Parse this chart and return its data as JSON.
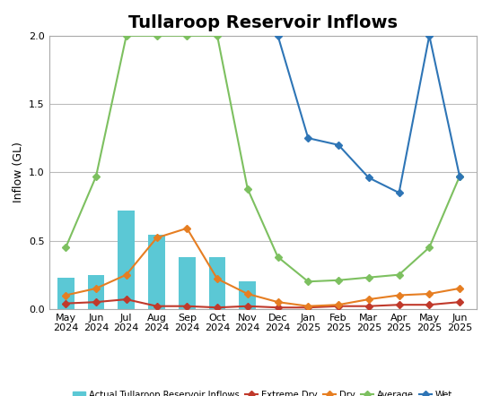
{
  "title": "Tullaroop Reservoir Inflows",
  "ylabel": "Inflow (GL)",
  "ylim": [
    0.0,
    2.0
  ],
  "yticks": [
    0.0,
    0.5,
    1.0,
    1.5,
    2.0
  ],
  "months": [
    "May\n2024",
    "Jun\n2024",
    "Jul\n2024",
    "Aug\n2024",
    "Sep\n2024",
    "Oct\n2024",
    "Nov\n2024",
    "Dec\n2024",
    "Jan\n2025",
    "Feb\n2025",
    "Mar\n2025",
    "Apr\n2025",
    "May\n2025",
    "Jun\n2025"
  ],
  "bar_values": [
    0.23,
    0.25,
    0.72,
    0.54,
    0.38,
    0.38,
    0.2,
    null,
    null,
    null,
    null,
    null,
    null,
    null
  ],
  "bar_color": "#5bc8d5",
  "extreme_dry": [
    0.04,
    0.05,
    0.07,
    0.02,
    0.02,
    0.01,
    0.02,
    0.01,
    0.01,
    0.02,
    0.02,
    0.03,
    0.03,
    0.05
  ],
  "dry": [
    0.1,
    0.15,
    0.25,
    0.52,
    0.59,
    0.22,
    0.11,
    0.05,
    0.02,
    0.03,
    0.07,
    0.1,
    0.11,
    0.15
  ],
  "average": [
    0.45,
    0.97,
    2.0,
    2.0,
    2.0,
    2.0,
    0.88,
    0.38,
    0.2,
    0.21,
    0.23,
    0.25,
    0.45,
    0.97
  ],
  "wet": [
    null,
    null,
    null,
    null,
    null,
    null,
    null,
    2.0,
    1.25,
    1.2,
    0.96,
    0.85,
    2.0,
    0.97
  ],
  "extreme_dry_color": "#c0392b",
  "dry_color": "#e67e22",
  "average_color": "#7dc060",
  "wet_color": "#2e75b6",
  "background_color": "#ffffff",
  "border_color": "#aaaaaa",
  "title_fontsize": 14,
  "label_fontsize": 9,
  "tick_fontsize": 8
}
